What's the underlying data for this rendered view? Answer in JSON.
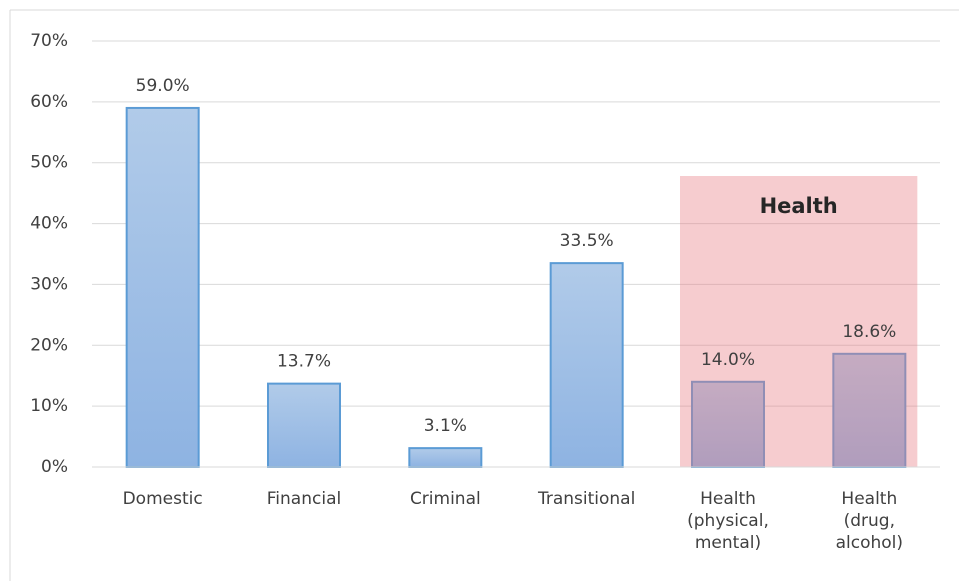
{
  "chart_data": {
    "type": "bar",
    "categories": [
      "Domestic",
      "Financial",
      "Criminal",
      "Transitional",
      "Health (physical, mental)",
      "Health (drug, alcohol)"
    ],
    "values": [
      59.0,
      13.7,
      3.1,
      33.5,
      14.0,
      18.6
    ],
    "value_labels": [
      "59.0%",
      "13.7%",
      "3.1%",
      "33.5%",
      "14.0%",
      "18.6%"
    ],
    "color": "#5b9bd5",
    "ylim": [
      0,
      70
    ],
    "yticks": [
      {
        "value": 0,
        "label": "0%"
      },
      {
        "value": 10,
        "label": "10%"
      },
      {
        "value": 20,
        "label": "20%"
      },
      {
        "value": 30,
        "label": "30%"
      },
      {
        "value": 40,
        "label": "40%"
      },
      {
        "value": 50,
        "label": "50%"
      },
      {
        "value": 60,
        "label": "60%"
      },
      {
        "value": 70,
        "label": "70%"
      }
    ],
    "grid": true,
    "annotations": [
      {
        "text": "Health"
      }
    ]
  }
}
